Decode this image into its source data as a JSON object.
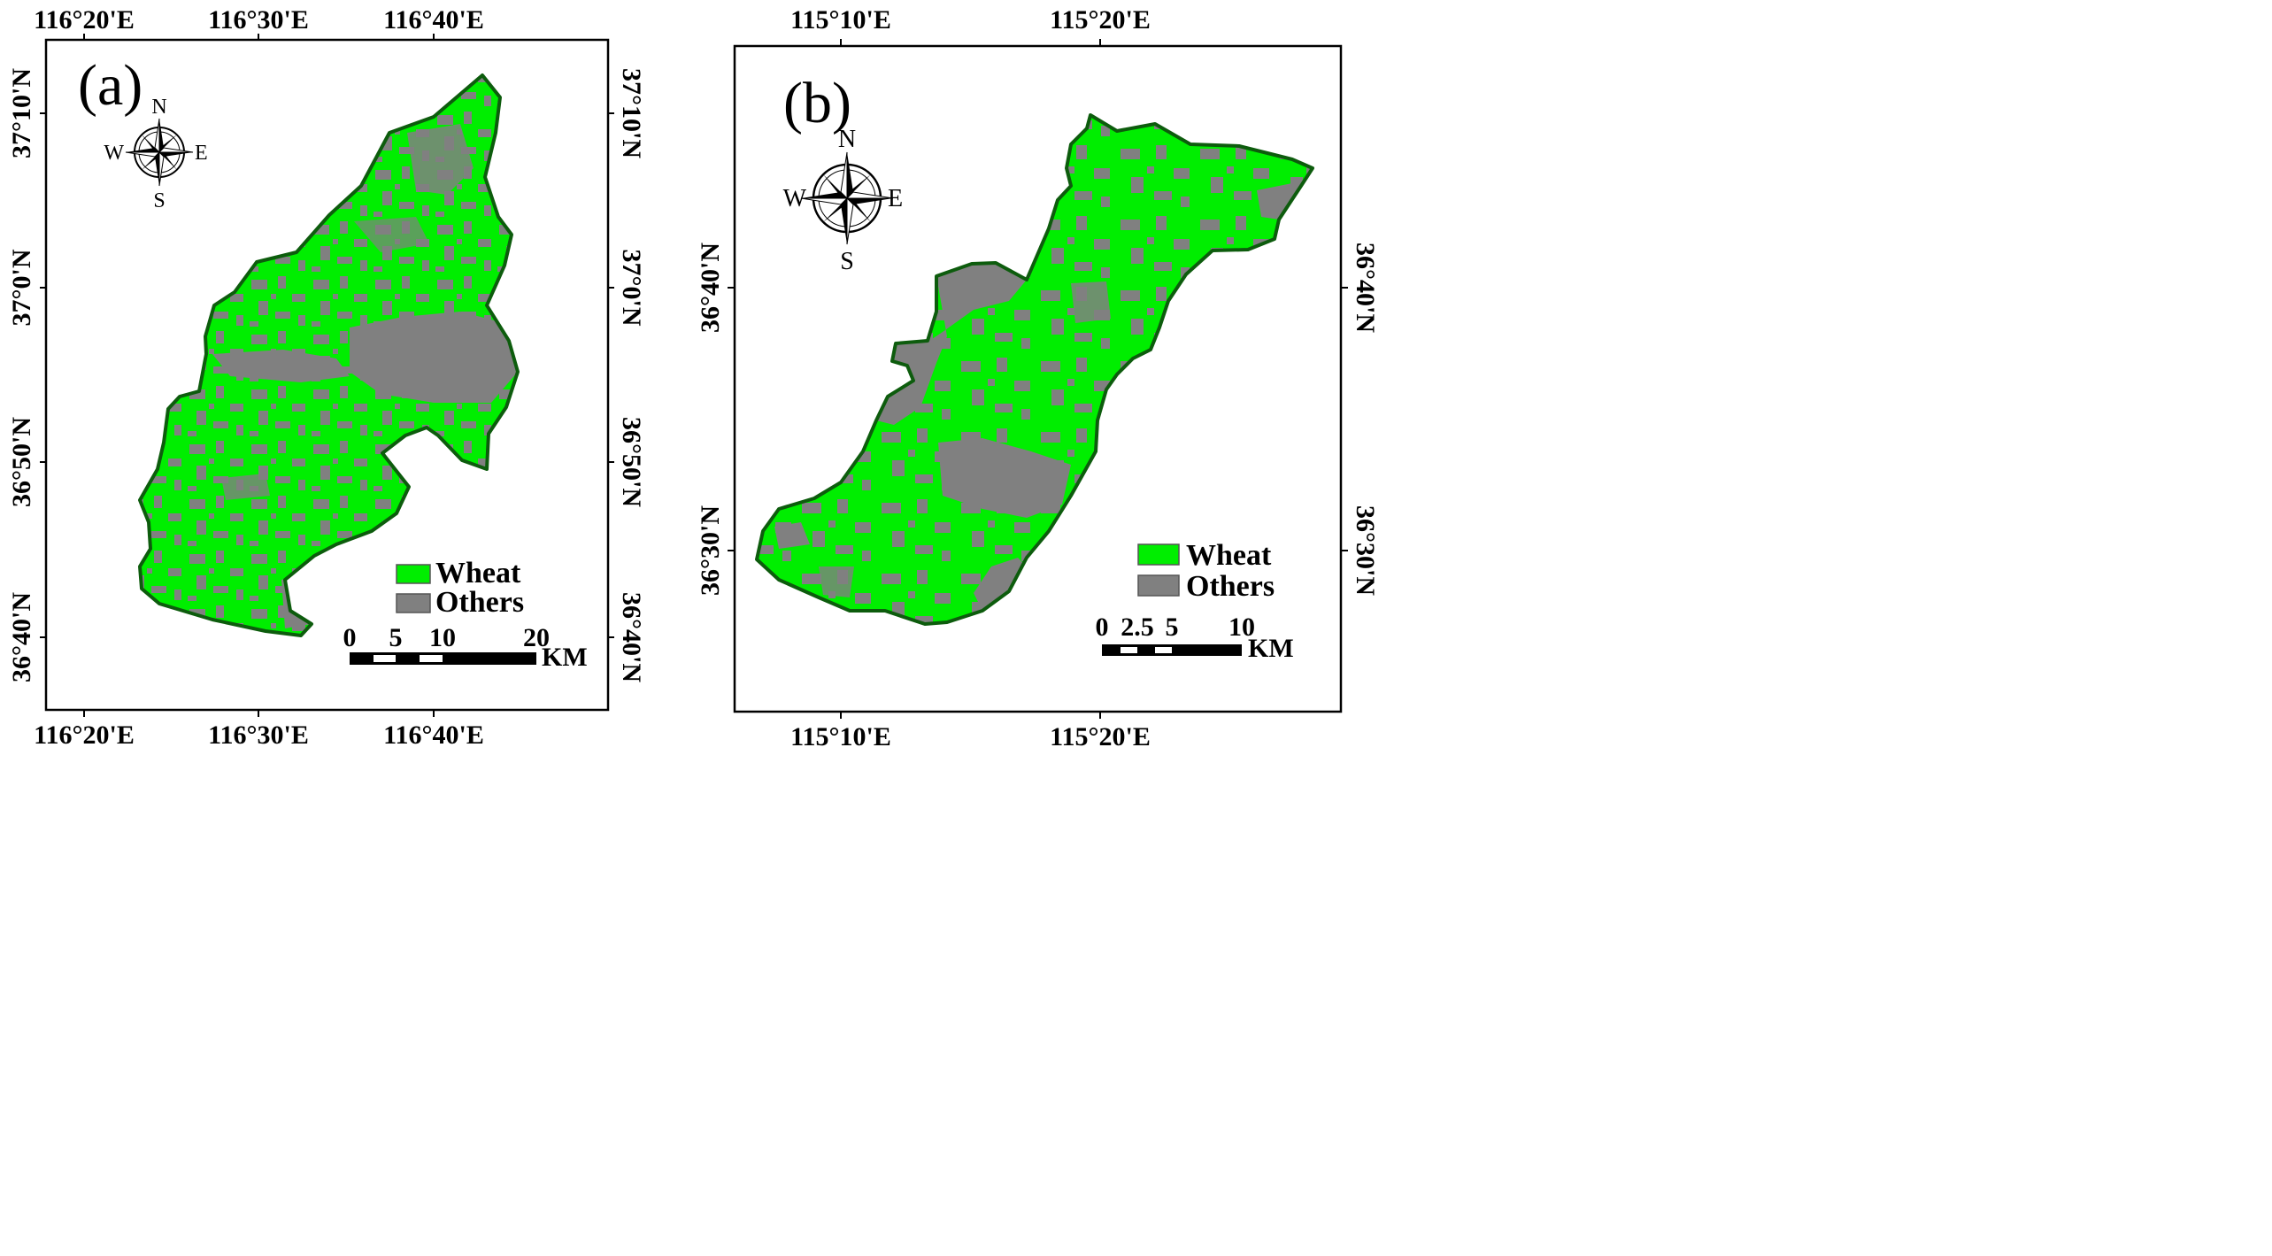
{
  "colors": {
    "wheat": "#00ee00",
    "others": "#808080",
    "boundary": "#0d5c0d",
    "frame": "#000000"
  },
  "panels": [
    {
      "id": "a",
      "label": "(a)",
      "top_ticks": [
        "116°20'E",
        "116°30'E",
        "116°40'E"
      ],
      "bottom_ticks": [
        "116°20'E",
        "116°30'E",
        "116°40'E"
      ],
      "left_ticks": [
        "37°10'N",
        "37°0'N",
        "36°50'N",
        "36°40'N"
      ],
      "right_ticks": [
        "37°10'N",
        "37°0'N",
        "36°50'N",
        "36°40'N"
      ],
      "compass": {
        "n": "N",
        "s": "S",
        "e": "E",
        "w": "W"
      },
      "legend": [
        {
          "label": "Wheat",
          "color": "#00ee00"
        },
        {
          "label": "Others",
          "color": "#808080"
        }
      ],
      "scale": {
        "ticks": [
          "0",
          "5",
          "10",
          "20"
        ],
        "unit": "KM"
      }
    },
    {
      "id": "b",
      "label": "(b)",
      "top_ticks": [
        "115°10'E",
        "115°20'E"
      ],
      "bottom_ticks": [
        "115°10'E",
        "115°20'E"
      ],
      "left_ticks": [
        "36°40'N",
        "36°30'N"
      ],
      "right_ticks": [
        "36°40'N",
        "36°30'N"
      ],
      "compass": {
        "n": "N",
        "s": "S",
        "e": "E",
        "w": "W"
      },
      "legend": [
        {
          "label": "Wheat",
          "color": "#00ee00"
        },
        {
          "label": "Others",
          "color": "#808080"
        }
      ],
      "scale": {
        "ticks": [
          "0",
          "2.5",
          "5",
          "10"
        ],
        "unit": "KM"
      }
    }
  ]
}
